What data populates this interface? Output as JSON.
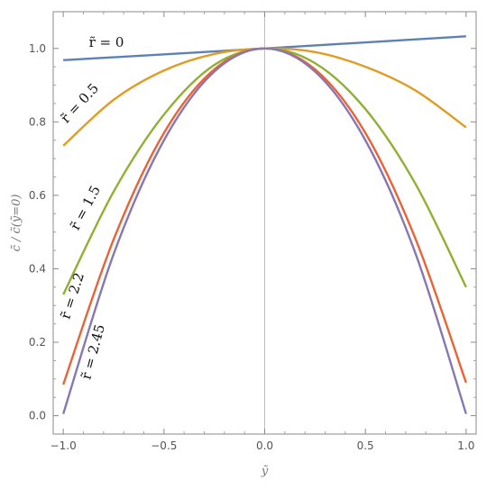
{
  "chart_data": {
    "type": "line",
    "title": "",
    "xlabel": "ỹ",
    "ylabel": "c̃ / c̃(ỹ=0)",
    "xlim": [
      -1.05,
      1.05
    ],
    "ylim": [
      -0.05,
      1.1
    ],
    "x_ticks": [
      -1.0,
      -0.5,
      0.0,
      0.5,
      1.0
    ],
    "x_tick_labels": [
      "−1.0",
      "−0.5",
      "0.0",
      "0.5",
      "1.0"
    ],
    "y_ticks": [
      0.0,
      0.2,
      0.4,
      0.6,
      0.8,
      1.0
    ],
    "y_tick_labels": [
      "0.0",
      "0.2",
      "0.4",
      "0.6",
      "0.8",
      "1.0"
    ],
    "grid": false,
    "frame": true,
    "vertical_line_x": 0.0,
    "series": [
      {
        "label": "r̃ = 0",
        "color": "#5e81b5",
        "x": [
          -1.0,
          0.0,
          1.0
        ],
        "y": [
          0.968,
          1.0,
          1.033
        ]
      },
      {
        "label": "r̃ = 0.5",
        "color": "#e19c24",
        "x": [
          -1.0,
          -0.75,
          -0.5,
          -0.25,
          0.0,
          0.25,
          0.5,
          0.75,
          1.0
        ],
        "y": [
          0.735,
          0.86,
          0.94,
          0.985,
          1.0,
          0.99,
          0.95,
          0.885,
          0.785
        ]
      },
      {
        "label": "r̃ = 1.5",
        "color": "#8fb032",
        "x": [
          -1.0,
          -0.75,
          -0.5,
          -0.25,
          0.0,
          0.25,
          0.5,
          0.75,
          1.0
        ],
        "y": [
          0.33,
          0.61,
          0.82,
          0.955,
          1.0,
          0.96,
          0.835,
          0.63,
          0.35
        ]
      },
      {
        "label": "r̃ = 2.2",
        "color": "#eb6235",
        "x": [
          -1.0,
          -0.75,
          -0.5,
          -0.25,
          0.0,
          0.25,
          0.5,
          0.75,
          1.0
        ],
        "y": [
          0.085,
          0.48,
          0.77,
          0.943,
          1.0,
          0.943,
          0.77,
          0.48,
          0.09
        ]
      },
      {
        "label": "r̃ = 2.45",
        "color": "#8778b3",
        "x": [
          -1.0,
          -0.75,
          -0.5,
          -0.25,
          0.0,
          0.25,
          0.5,
          0.75,
          1.0
        ],
        "y": [
          0.005,
          0.44,
          0.75,
          0.937,
          1.0,
          0.937,
          0.75,
          0.44,
          0.005
        ]
      }
    ]
  }
}
